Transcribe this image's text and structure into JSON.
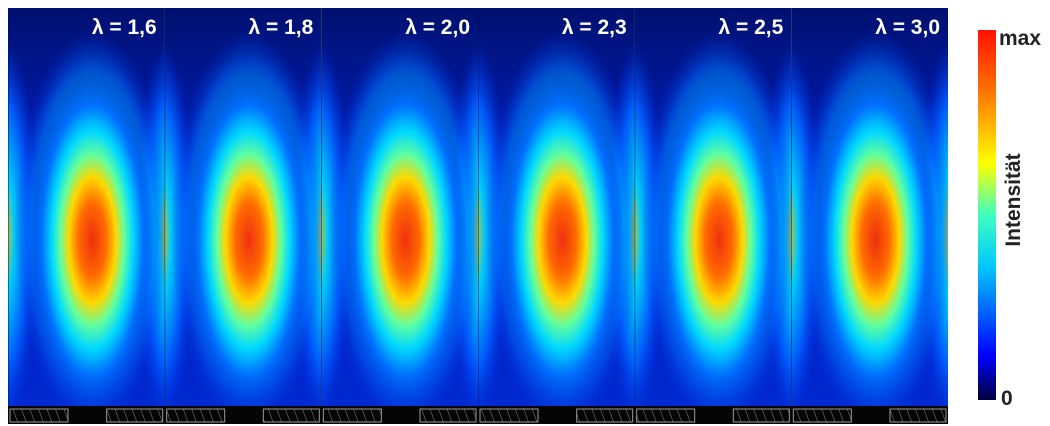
{
  "panels": [
    {
      "label": "λ = 1,6"
    },
    {
      "label": "λ = 1,8"
    },
    {
      "label": "λ = 2,0"
    },
    {
      "label": "λ = 2,3"
    },
    {
      "label": "λ = 2,5"
    },
    {
      "label": "λ = 3,0"
    }
  ],
  "colorbar": {
    "title": "Intensität",
    "max_label": "max",
    "min_label": "0"
  }
}
